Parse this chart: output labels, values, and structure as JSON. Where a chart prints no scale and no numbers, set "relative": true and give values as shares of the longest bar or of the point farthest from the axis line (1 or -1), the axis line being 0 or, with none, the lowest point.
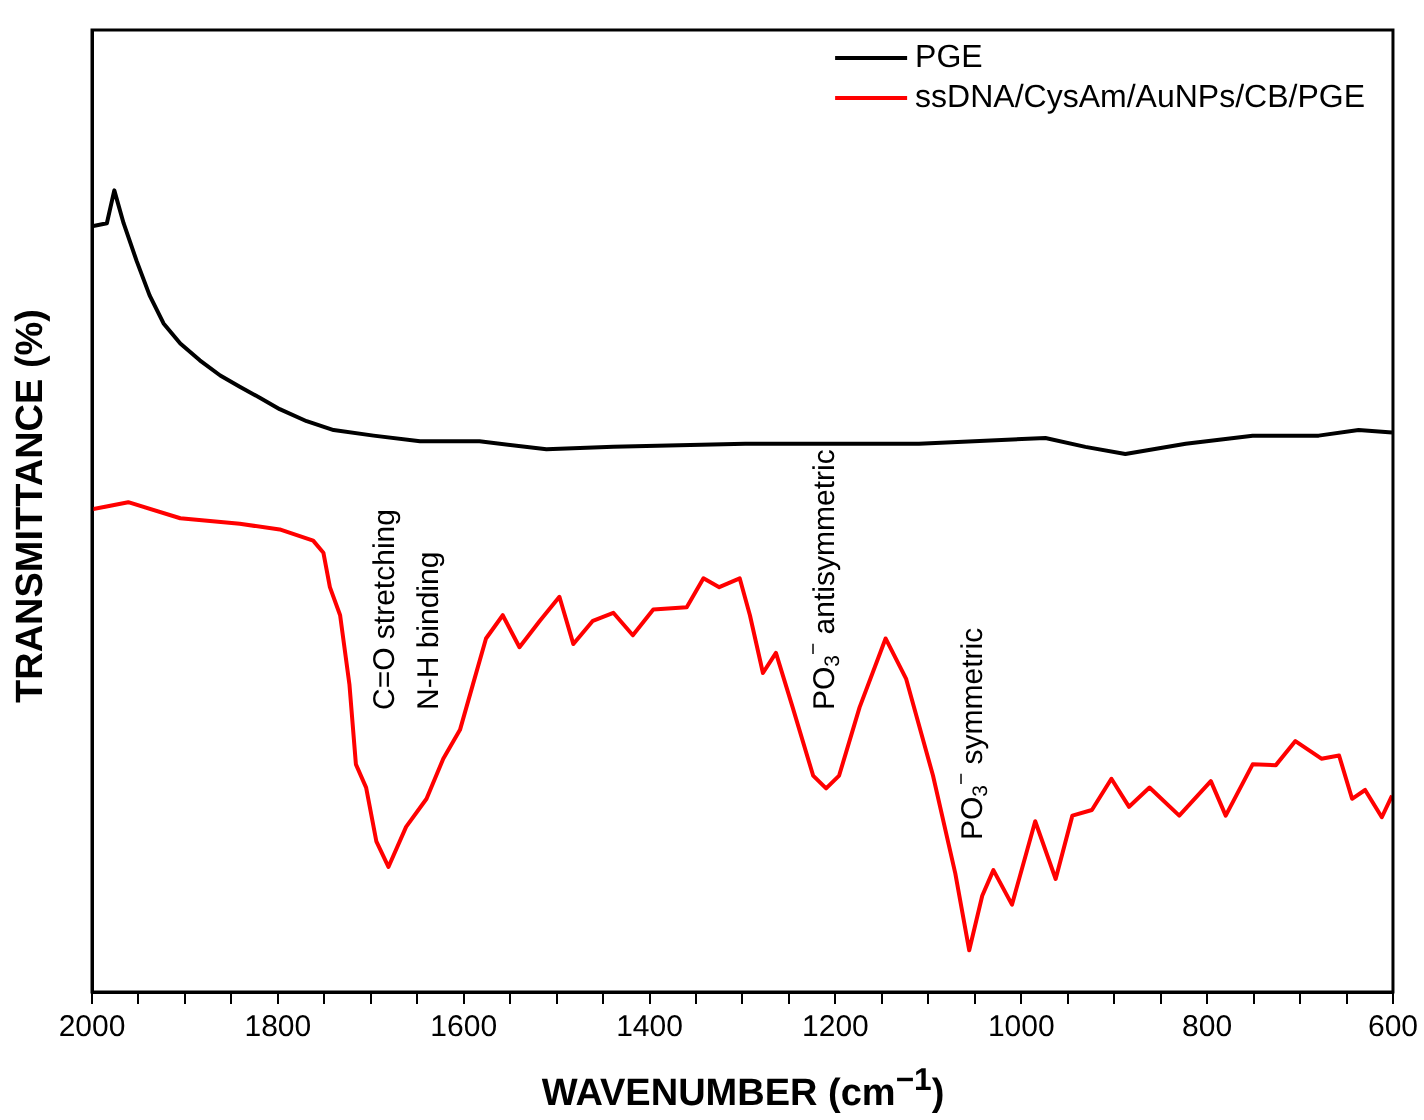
{
  "chart_data": {
    "type": "line",
    "relative": true,
    "xlabel": "WAVENUMBER (cm$^{−1}$)",
    "ylabel": "TRANSMITTANCE (%)",
    "xlim": [
      2000,
      600
    ],
    "xticks": [
      2000,
      {
        "value": 1950,
        "label": null
      },
      {
        "value": 1900,
        "label": null
      },
      {
        "value": 1850,
        "label": null
      },
      1800,
      {
        "value": 1750,
        "label": null
      },
      {
        "value": 1700,
        "label": null
      },
      {
        "value": 1650,
        "label": null
      },
      1600,
      {
        "value": 1550,
        "label": null
      },
      {
        "value": 1500,
        "label": null
      },
      {
        "value": 1450,
        "label": null
      },
      1400,
      {
        "value": 1350,
        "label": null
      },
      {
        "value": 1300,
        "label": null
      },
      {
        "value": 1250,
        "label": null
      },
      1200,
      {
        "value": 1150,
        "label": null
      },
      {
        "value": 1100,
        "label": null
      },
      {
        "value": 1050,
        "label": null
      },
      1000,
      {
        "value": 950,
        "label": null
      },
      {
        "value": 900,
        "label": null
      },
      {
        "value": 850,
        "label": null
      },
      800,
      {
        "value": 750,
        "label": null
      },
      {
        "value": 700,
        "label": null
      },
      {
        "value": 650,
        "label": null
      },
      600
    ],
    "legend": "top right",
    "grid": false,
    "marker": "none",
    "line_style": "solid",
    "series": [
      {
        "name": "PGE",
        "color": "#000000",
        "x": [
          2000,
          1984,
          1976,
          1966,
          1952,
          1938,
          1923,
          1905,
          1884,
          1862,
          1841,
          1819,
          1798,
          1769,
          1740,
          1697,
          1647,
          1583,
          1511,
          1439,
          1297,
          1217,
          1110,
          974,
          931,
          888,
          823,
          751,
          680,
          637,
          601
        ],
        "values": [
          0.955,
          0.959,
          1.0,
          0.959,
          0.912,
          0.869,
          0.834,
          0.809,
          0.788,
          0.769,
          0.755,
          0.741,
          0.727,
          0.712,
          0.701,
          0.694,
          0.687,
          0.687,
          0.677,
          0.68,
          0.684,
          0.684,
          0.684,
          0.691,
          0.68,
          0.671,
          0.684,
          0.694,
          0.694,
          0.701,
          0.698
        ]
      },
      {
        "name": "ssDNA/CysAm/AuNPs/CB/PGE",
        "color": "#ff0000",
        "x": [
          2000,
          1961,
          1905,
          1841,
          1798,
          1762,
          1751,
          1744,
          1733,
          1723,
          1716,
          1705,
          1694,
          1681,
          1662,
          1640,
          1622,
          1604,
          1590,
          1576,
          1558,
          1540,
          1518,
          1497,
          1482,
          1461,
          1439,
          1418,
          1396,
          1360,
          1342,
          1325,
          1303,
          1292,
          1278,
          1264,
          1246,
          1224,
          1210,
          1196,
          1174,
          1146,
          1124,
          1095,
          1071,
          1056,
          1042,
          1030,
          1010,
          985,
          963,
          945,
          924,
          903,
          884,
          862,
          830,
          796,
          780,
          751,
          726,
          705,
          677,
          658,
          644,
          630,
          612,
          601
        ],
        "values": [
          0.602,
          0.611,
          0.591,
          0.584,
          0.577,
          0.563,
          0.548,
          0.505,
          0.47,
          0.384,
          0.284,
          0.255,
          0.188,
          0.156,
          0.206,
          0.241,
          0.291,
          0.327,
          0.384,
          0.441,
          0.47,
          0.43,
          0.463,
          0.493,
          0.434,
          0.463,
          0.473,
          0.445,
          0.477,
          0.48,
          0.516,
          0.505,
          0.516,
          0.47,
          0.398,
          0.423,
          0.355,
          0.27,
          0.254,
          0.27,
          0.355,
          0.441,
          0.391,
          0.27,
          0.148,
          0.052,
          0.12,
          0.152,
          0.109,
          0.213,
          0.141,
          0.22,
          0.227,
          0.266,
          0.231,
          0.255,
          0.22,
          0.263,
          0.22,
          0.284,
          0.283,
          0.313,
          0.291,
          0.295,
          0.241,
          0.252,
          0.218,
          0.245
        ]
      }
    ],
    "annotations": [
      "C=O stretching",
      "N-H binding",
      "PO$_{3}$$^{−}$ antisymmetric",
      "PO$_{3}$$^{−}$ symmetric"
    ]
  }
}
